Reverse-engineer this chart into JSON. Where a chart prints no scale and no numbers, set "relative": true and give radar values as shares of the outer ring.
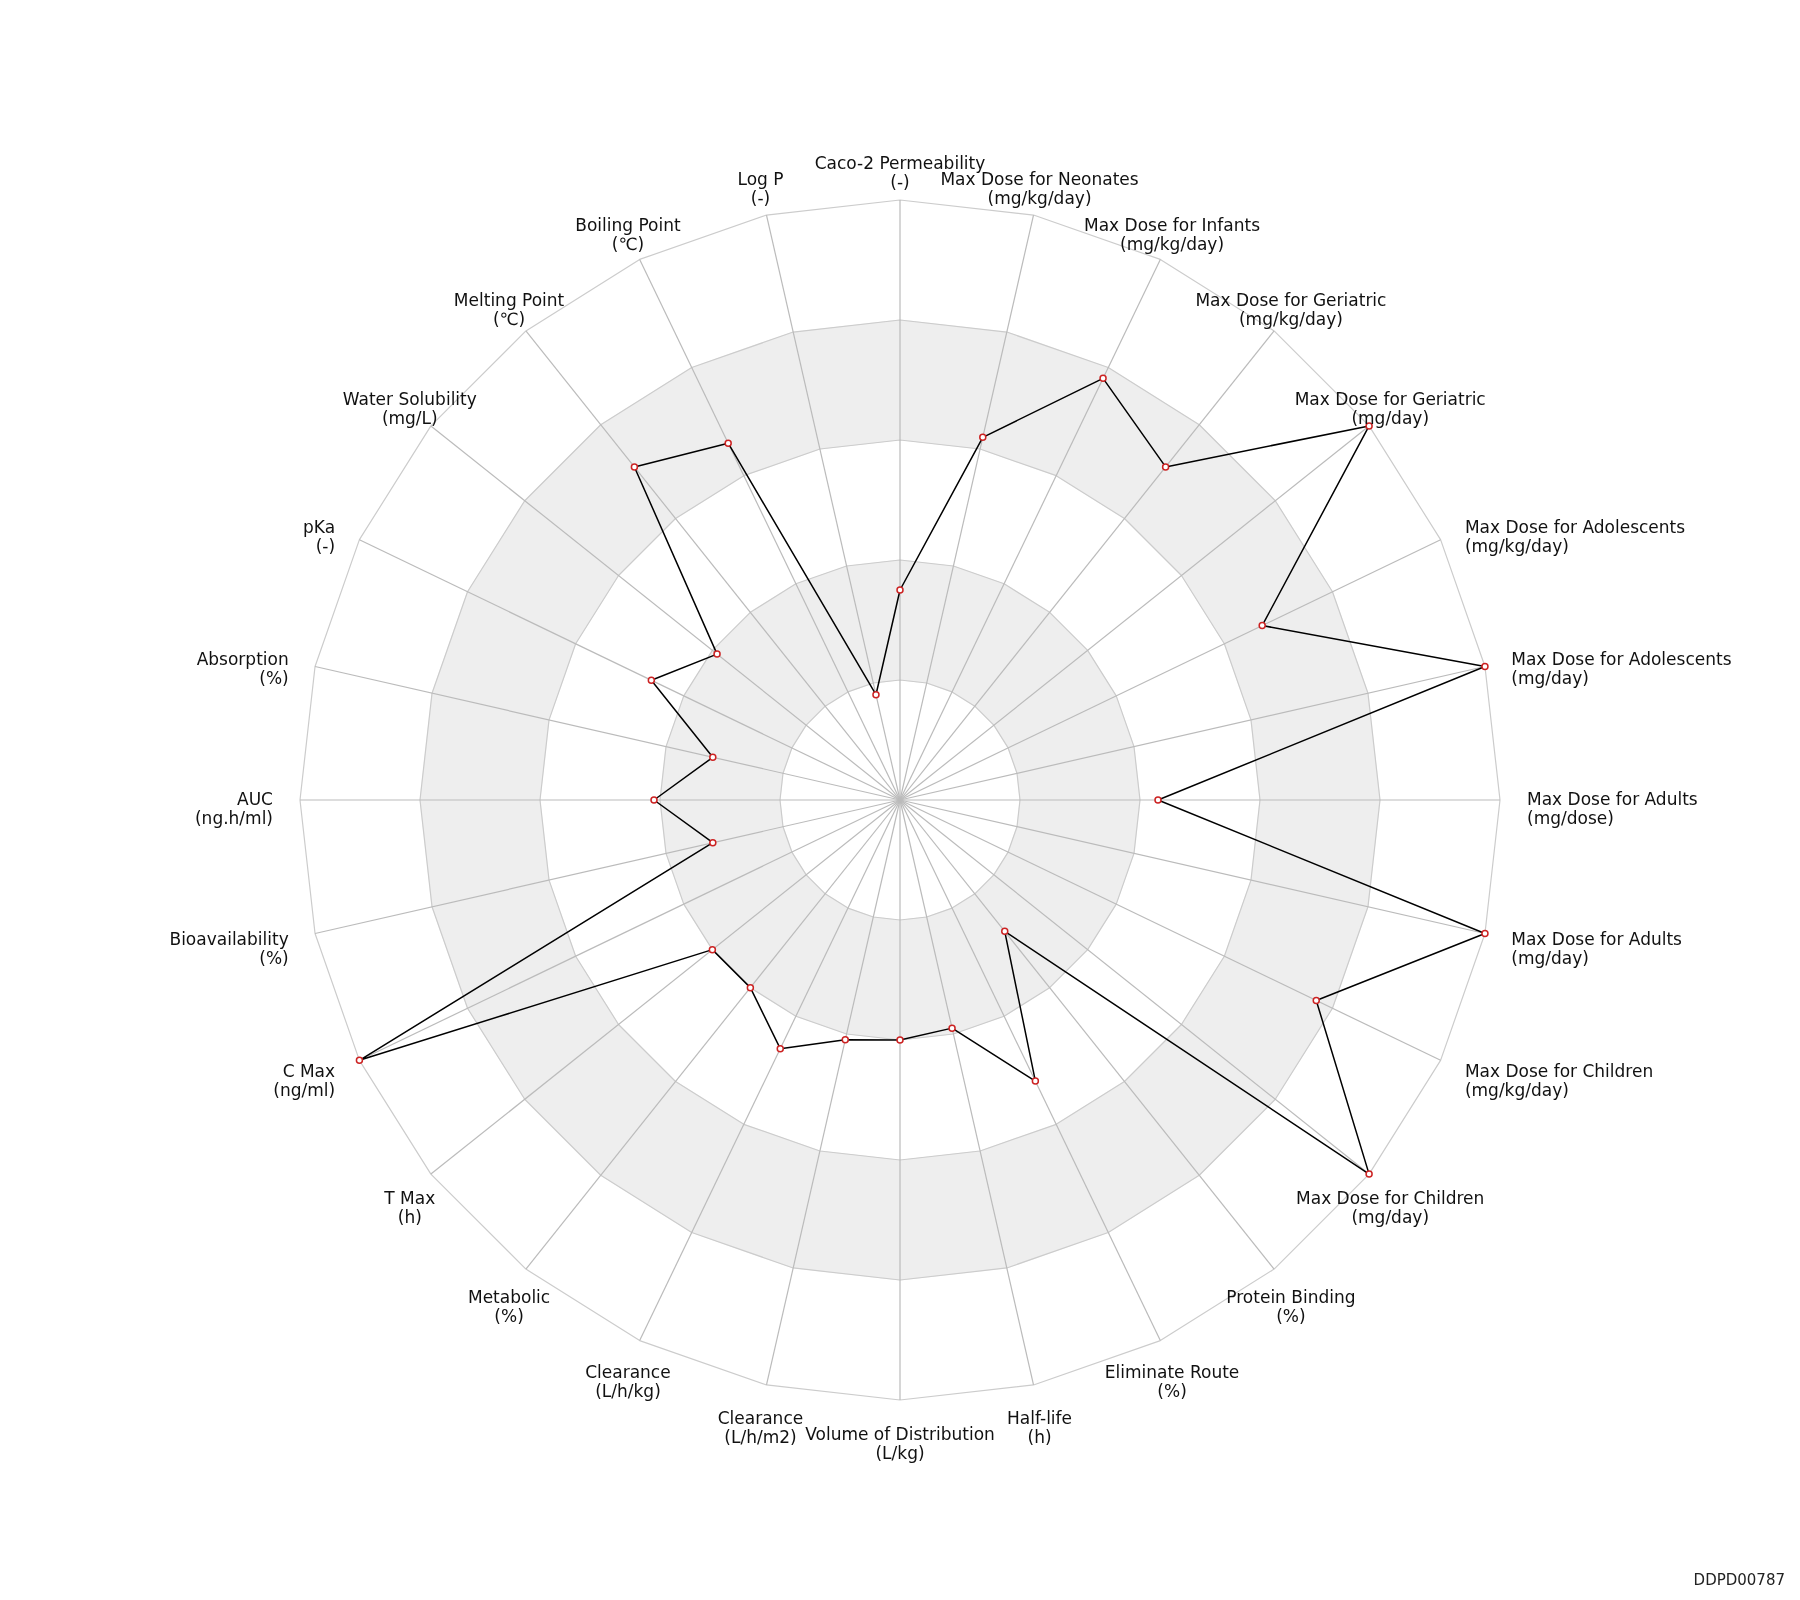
{
  "chart_data": {
    "type": "radar",
    "relative": true,
    "grid": true,
    "marker": "circle",
    "line_style": "solid",
    "categories": [
      "Caco-2 Permeability\n(-)",
      "Max Dose for Neonates\n(mg/kg/day)",
      "Max Dose for Infants\n(mg/kg/day)",
      "Max Dose for Geriatric\n(mg/kg/day)",
      "Max Dose for Geriatric\n(mg/day)",
      "Max Dose for Adolescents\n(mg/kg/day)",
      "Max Dose for Adolescents\n(mg/day)",
      "Max Dose for Adults\n(mg/dose)",
      "Max Dose for Adults\n(mg/day)",
      "Max Dose for Children\n(mg/kg/day)",
      "Max Dose for Children\n(mg/day)",
      "Protein Binding\n(%)",
      "Eliminate Route\n(%)",
      "Half-life\n(h)",
      "Volume of Distribution\n(L/kg)",
      "Clearance\n(L/h/m2)",
      "Clearance\n(L/h/kg)",
      "Metabolic\n(%)",
      "T Max\n(h)",
      "C Max\n(ng/ml)",
      "Bioavailability\n(%)",
      "AUC\n(ng.h/ml)",
      "Absorption\n(%)",
      "pKa\n(-)",
      "Water Solubility\n(mg/L)",
      "Melting Point\n(℃)",
      "Boiling Point\n(℃)",
      "Log P\n(-)"
    ],
    "series": [
      {
        "color": "#000000",
        "values": [
          0.35,
          0.62,
          0.78,
          0.71,
          1.0,
          0.67,
          1.0,
          0.43,
          1.0,
          0.77,
          1.0,
          0.28,
          0.52,
          0.39,
          0.4,
          0.41,
          0.46,
          0.4,
          0.4,
          1.0,
          0.32,
          0.41,
          0.32,
          0.46,
          0.39,
          0.71,
          0.66,
          0.18
        ]
      }
    ],
    "annotations": [
      "DDPD00787"
    ]
  }
}
